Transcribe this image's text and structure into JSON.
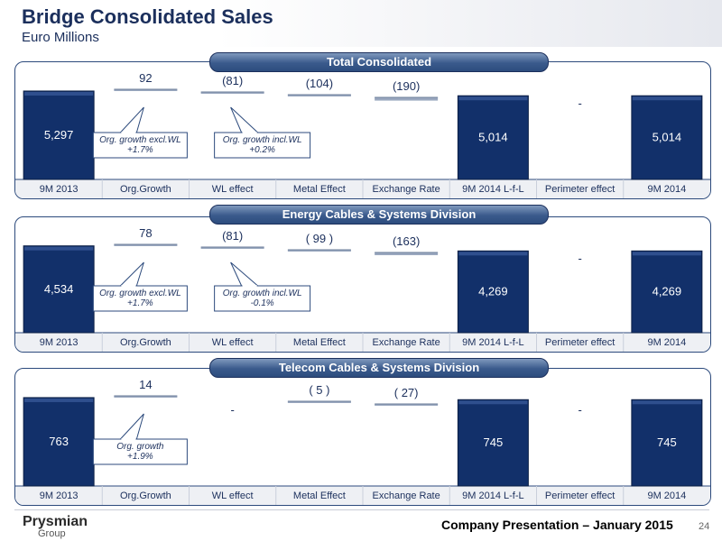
{
  "header": {
    "title": "Bridge Consolidated Sales",
    "subtitle": "Euro Millions"
  },
  "footer": {
    "logo_main": "Prysmian",
    "logo_sub": "Group",
    "text": "Company Presentation – January 2015",
    "page": "24"
  },
  "chart_data": [
    {
      "type": "bar",
      "title": "Total Consolidated",
      "categories": [
        "9M 2013",
        "Org.Growth",
        "WL effect",
        "Metal Effect",
        "Exchange Rate",
        "9M 2014 L-f-L",
        "Perimeter effect",
        "9M 2014"
      ],
      "values": [
        5297,
        92,
        -81,
        -104,
        -190,
        5014,
        0,
        5014
      ],
      "labels": [
        "5,297",
        "92",
        "(81)",
        "(104)",
        "(190)",
        "5,014",
        "-",
        "5,014"
      ],
      "callouts": [
        {
          "category": "Org.Growth",
          "lines": [
            "Org. growth  excl.WL",
            "+1.7%"
          ]
        },
        {
          "category": "WL effect",
          "lines": [
            "Org. growth  incl.WL",
            "+0.2%"
          ]
        }
      ]
    },
    {
      "type": "bar",
      "title": "Energy Cables & Systems Division",
      "categories": [
        "9M 2013",
        "Org.Growth",
        "WL effect",
        "Metal Effect",
        "Exchange Rate",
        "9M 2014 L-f-L",
        "Perimeter effect",
        "9M 2014"
      ],
      "values": [
        4534,
        78,
        -81,
        -99,
        -163,
        4269,
        0,
        4269
      ],
      "labels": [
        "4,534",
        "78",
        "(81)",
        "( 99 )",
        "(163)",
        "4,269",
        "-",
        "4,269"
      ],
      "callouts": [
        {
          "category": "Org.Growth",
          "lines": [
            "Org. growth  excl.WL",
            "+1.7%"
          ]
        },
        {
          "category": "WL effect",
          "lines": [
            "Org. growth  incl.WL",
            "-0.1%"
          ]
        }
      ]
    },
    {
      "type": "bar",
      "title": "Telecom Cables & Systems Division",
      "categories": [
        "9M 2013",
        "Org.Growth",
        "WL effect",
        "Metal Effect",
        "Exchange Rate",
        "9M 2014 L-f-L",
        "Perimeter effect",
        "9M 2014"
      ],
      "values": [
        763,
        14,
        0,
        -5,
        -27,
        745,
        0,
        745
      ],
      "labels": [
        "763",
        "14",
        "-",
        "( 5 )",
        "( 27)",
        "745",
        "-",
        "745"
      ],
      "callouts": [
        {
          "category": "Org.Growth",
          "lines": [
            "Org. growth",
            "+1.9%"
          ]
        }
      ]
    }
  ]
}
